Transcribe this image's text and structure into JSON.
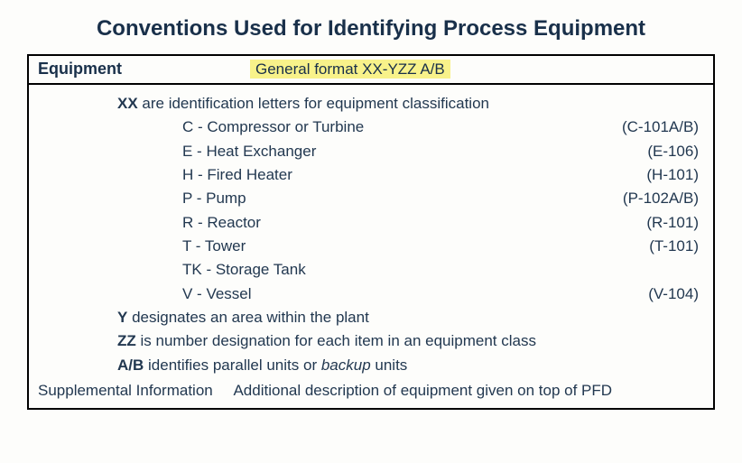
{
  "title": "Conventions Used for Identifying Process Equipment",
  "header": {
    "left": "Equipment",
    "center": "General format XX-YZZ A/B"
  },
  "xx_intro_prefix": "XX",
  "xx_intro_rest": " are identification letters for equipment classification",
  "defs": [
    {
      "label": "C - Compressor or Turbine",
      "example": "(C-101A/B)"
    },
    {
      "label": "E - Heat Exchanger",
      "example": "(E-106)"
    },
    {
      "label": "H - Fired Heater",
      "example": "(H-101)"
    },
    {
      "label": "P - Pump",
      "example": "(P-102A/B)"
    },
    {
      "label": "R - Reactor",
      "example": "(R-101)"
    },
    {
      "label": "T - Tower",
      "example": "(T-101)"
    },
    {
      "label": "TK - Storage Tank",
      "example": ""
    },
    {
      "label": "V - Vessel",
      "example": "(V-104)"
    }
  ],
  "y_prefix": "Y",
  "y_rest": " designates an area within the plant",
  "zz_prefix": "ZZ",
  "zz_rest": " is number designation for each item in an equipment class",
  "ab_prefix": "A/B",
  "ab_mid": " identifies parallel units or ",
  "ab_ital": "backup",
  "ab_end": " units",
  "supp": {
    "label": "Supplemental Information",
    "text": "Additional description of equipment given on top of PFD"
  },
  "style": {
    "highlight_bg": "#f8f28a",
    "text_color": "#19304a",
    "border_color": "#000000",
    "background": "#fdfdfb",
    "title_fontsize": 24,
    "body_fontsize": 17
  }
}
